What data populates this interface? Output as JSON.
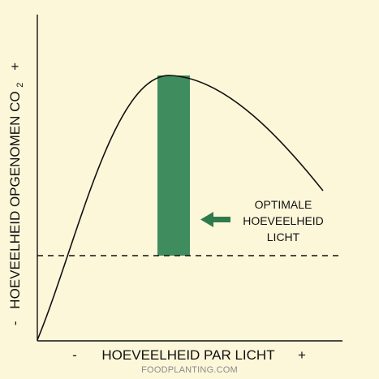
{
  "diagram": {
    "x_axis": {
      "label": "HOEVEELHEID PAR LICHT",
      "minus": "-",
      "plus": "+"
    },
    "y_axis": {
      "label": "HOEVEELHEID OPGENOMEN CO",
      "subscript": "2",
      "minus": "-",
      "plus": "+"
    },
    "annotation": {
      "lines": [
        "OPTIMALE",
        "HOEVEELHEID",
        "LICHT"
      ]
    },
    "colors": {
      "optimal_band": "#3f8c5f",
      "arrow": "#2f7a4c",
      "curve": "#111111",
      "background": "#fdf7da"
    }
  },
  "watermark": "FOODPLANTING.COM"
}
